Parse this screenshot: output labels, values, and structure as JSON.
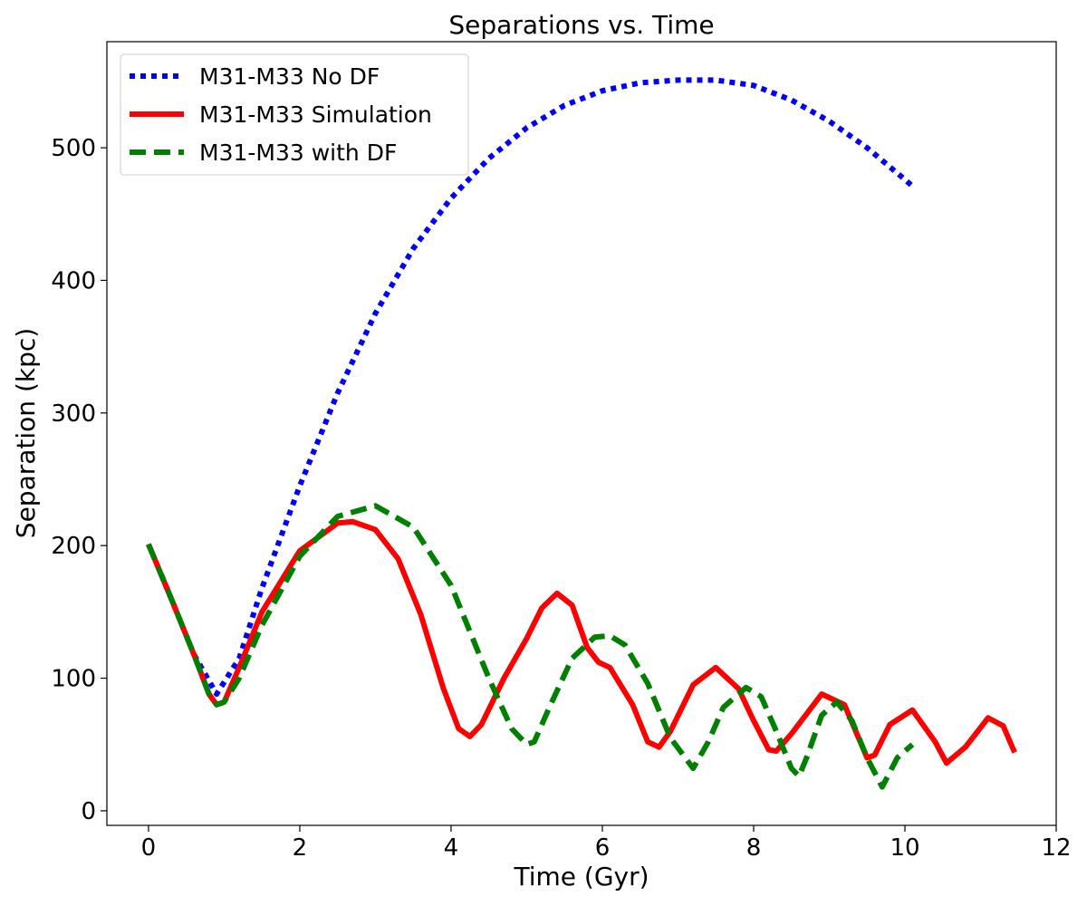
{
  "chart_data": {
    "type": "line",
    "title": "Separations vs. Time",
    "xlabel": "Time (Gyr)",
    "ylabel": "Separation (kpc)",
    "xlim": [
      -0.55,
      12
    ],
    "ylim": [
      -11,
      580
    ],
    "xticks": [
      0,
      2,
      4,
      6,
      8,
      10,
      12
    ],
    "yticks": [
      0,
      100,
      200,
      300,
      400,
      500
    ],
    "grid": false,
    "legend_position": "top-left",
    "series": [
      {
        "name": "M31-M33 No DF",
        "color": "#0000ff",
        "style": "dotted",
        "x": [
          0,
          0.3,
          0.6,
          0.9,
          1.2,
          1.5,
          2.0,
          2.5,
          3.0,
          3.5,
          4.0,
          4.5,
          5.0,
          5.5,
          6.0,
          6.5,
          7.0,
          7.5,
          8.0,
          8.5,
          9.0,
          9.5,
          10.0,
          10.1
        ],
        "y": [
          201,
          160,
          118,
          88,
          115,
          168,
          245,
          315,
          375,
          424,
          462,
          492,
          515,
          532,
          543,
          549,
          551,
          551,
          547,
          536,
          520,
          500,
          476,
          471
        ]
      },
      {
        "name": "M31-M33 Simulation",
        "color": "#ff0000",
        "style": "solid",
        "x": [
          0,
          0.3,
          0.6,
          0.8,
          0.9,
          1.0,
          1.2,
          1.5,
          2.0,
          2.5,
          2.7,
          3.0,
          3.3,
          3.6,
          3.9,
          4.1,
          4.25,
          4.4,
          4.7,
          5.0,
          5.2,
          5.4,
          5.6,
          5.8,
          5.95,
          6.1,
          6.4,
          6.6,
          6.75,
          6.9,
          7.2,
          7.5,
          7.8,
          8.0,
          8.2,
          8.3,
          8.5,
          8.9,
          9.2,
          9.5,
          9.6,
          9.8,
          10.1,
          10.4,
          10.55,
          10.8,
          11.1,
          11.3,
          11.45
        ],
        "y": [
          201,
          160,
          118,
          88,
          80,
          82,
          108,
          150,
          196,
          217,
          218,
          212,
          190,
          148,
          92,
          62,
          56,
          65,
          100,
          130,
          153,
          164,
          155,
          123,
          112,
          108,
          80,
          52,
          48,
          60,
          95,
          108,
          92,
          68,
          46,
          45,
          58,
          88,
          80,
          40,
          42,
          65,
          76,
          52,
          36,
          48,
          70,
          64,
          44
        ]
      },
      {
        "name": "M31-M33 with DF",
        "color": "#008000",
        "style": "dashed",
        "x": [
          0,
          0.3,
          0.6,
          0.8,
          0.9,
          1.0,
          1.2,
          1.5,
          2.0,
          2.5,
          3.0,
          3.5,
          4.0,
          4.5,
          4.8,
          5.0,
          5.1,
          5.3,
          5.6,
          5.9,
          6.1,
          6.3,
          6.6,
          6.9,
          7.2,
          7.4,
          7.6,
          7.9,
          8.1,
          8.3,
          8.5,
          8.6,
          8.7,
          8.9,
          9.1,
          9.3,
          9.5,
          9.7,
          9.9,
          10.1
        ],
        "y": [
          201,
          160,
          118,
          88,
          80,
          82,
          100,
          140,
          192,
          222,
          230,
          214,
          170,
          100,
          62,
          50,
          52,
          78,
          115,
          131,
          132,
          125,
          96,
          55,
          32,
          52,
          78,
          93,
          86,
          60,
          32,
          26,
          40,
          72,
          82,
          68,
          40,
          18,
          40,
          50
        ]
      }
    ]
  }
}
